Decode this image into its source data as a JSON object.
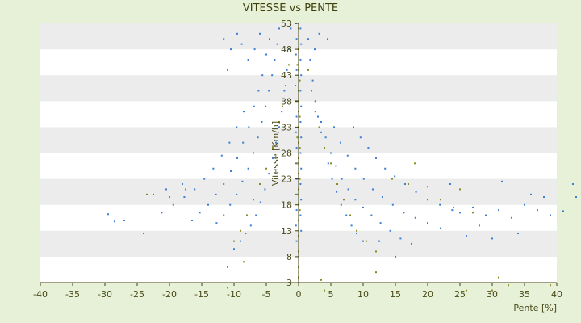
{
  "chart_data": {
    "type": "scatter",
    "title": "VITESSE vs PENTE",
    "xlabel": "Pente [%]",
    "ylabel": "Vitesse [Km/h]",
    "xlim": [
      -40,
      40
    ],
    "ylim": [
      3,
      53
    ],
    "x_ticks": [
      -40,
      -35,
      -30,
      -25,
      -20,
      -15,
      -10,
      -5,
      0,
      5,
      10,
      15,
      20,
      25,
      30,
      35,
      40
    ],
    "y_ticks": [
      3,
      8,
      13,
      18,
      23,
      28,
      33,
      38,
      43,
      48,
      53
    ],
    "grid": "horizontal bands",
    "legend": "none",
    "colors": {
      "background": "#e6f1d7",
      "plot_band_light": "#ffffff",
      "plot_band_dark": "#ececec",
      "series_blue": "#3a7fd5",
      "series_olive": "#8a8a1e",
      "text": "#4a4a1a"
    },
    "series": [
      {
        "color_key": "series_blue",
        "points": [
          [
            -0.4,
            53
          ],
          [
            -0.3,
            50
          ],
          [
            -0.4,
            47
          ],
          [
            -0.3,
            44
          ],
          [
            -0.5,
            41
          ],
          [
            -0.4,
            38
          ],
          [
            -0.3,
            35
          ],
          [
            -0.4,
            32
          ],
          [
            -0.3,
            29
          ],
          [
            -0.4,
            26
          ],
          [
            -0.3,
            23
          ],
          [
            -0.4,
            20
          ],
          [
            -0.3,
            17
          ],
          [
            -0.4,
            14
          ],
          [
            -0.3,
            11
          ],
          [
            0.3,
            52
          ],
          [
            0.4,
            49
          ],
          [
            0.3,
            46
          ],
          [
            0.4,
            43
          ],
          [
            0.3,
            40
          ],
          [
            0.4,
            37
          ],
          [
            0.3,
            34
          ],
          [
            0.4,
            31
          ],
          [
            0.3,
            28
          ],
          [
            0.4,
            25
          ],
          [
            0.3,
            22
          ],
          [
            0.4,
            19
          ],
          [
            0.3,
            16
          ],
          [
            0.4,
            13
          ],
          [
            -1.2,
            52
          ],
          [
            -1.5,
            48
          ],
          [
            -1.8,
            44
          ],
          [
            -2.2,
            40
          ],
          [
            -2.6,
            36
          ],
          [
            -3.0,
            33
          ],
          [
            -3.5,
            30
          ],
          [
            -4.0,
            27
          ],
          [
            -4.6,
            24
          ],
          [
            -5.2,
            21
          ],
          [
            -5.9,
            18.5
          ],
          [
            -6.6,
            16
          ],
          [
            -7.4,
            14
          ],
          [
            -8.2,
            12.5
          ],
          [
            -9.0,
            11
          ],
          [
            -10.0,
            9.5
          ],
          [
            -3.0,
            52
          ],
          [
            -3.3,
            49
          ],
          [
            -3.7,
            46
          ],
          [
            -4.1,
            43
          ],
          [
            -4.6,
            40
          ],
          [
            -5.1,
            37
          ],
          [
            -5.7,
            34
          ],
          [
            -6.3,
            31
          ],
          [
            -7.0,
            28
          ],
          [
            -7.8,
            25
          ],
          [
            -8.7,
            22.5
          ],
          [
            -9.6,
            20
          ],
          [
            -10.6,
            18
          ],
          [
            -11.6,
            16
          ],
          [
            -12.7,
            14.5
          ],
          [
            -4.5,
            50
          ],
          [
            -5.0,
            47
          ],
          [
            -5.6,
            43
          ],
          [
            -6.2,
            40
          ],
          [
            -6.9,
            37
          ],
          [
            -7.7,
            33
          ],
          [
            -8.6,
            30
          ],
          [
            -9.5,
            27
          ],
          [
            -10.5,
            24.5
          ],
          [
            -11.6,
            22
          ],
          [
            -12.8,
            20
          ],
          [
            -14.0,
            18
          ],
          [
            -15.3,
            16.5
          ],
          [
            -16.5,
            15
          ],
          [
            -6.0,
            51
          ],
          [
            -6.8,
            48
          ],
          [
            -7.8,
            46
          ],
          [
            -8.8,
            49
          ],
          [
            -9.5,
            51
          ],
          [
            -10.5,
            48
          ],
          [
            -11.0,
            44
          ],
          [
            -11.6,
            50
          ],
          [
            -8.5,
            36
          ],
          [
            -9.6,
            33
          ],
          [
            -10.7,
            30
          ],
          [
            -11.9,
            27.5
          ],
          [
            -13.2,
            25
          ],
          [
            -14.6,
            23
          ],
          [
            -16.1,
            21
          ],
          [
            -17.7,
            19.5
          ],
          [
            -19.4,
            18
          ],
          [
            -21.2,
            16.5
          ],
          [
            -22.5,
            20
          ],
          [
            -24.0,
            12.5
          ],
          [
            -27.0,
            15
          ],
          [
            -28.5,
            14.8
          ],
          [
            -29.5,
            16.2
          ],
          [
            -18.0,
            22
          ],
          [
            -20.5,
            21
          ],
          [
            1.5,
            50
          ],
          [
            1.8,
            46
          ],
          [
            2.2,
            42
          ],
          [
            2.6,
            38
          ],
          [
            3.0,
            35
          ],
          [
            3.5,
            32
          ],
          [
            4.0,
            29
          ],
          [
            4.6,
            26
          ],
          [
            5.2,
            23
          ],
          [
            5.9,
            20.5
          ],
          [
            6.6,
            18
          ],
          [
            7.4,
            16
          ],
          [
            8.2,
            14
          ],
          [
            9.0,
            12.5
          ],
          [
            10.0,
            11
          ],
          [
            3.5,
            34
          ],
          [
            4.2,
            31
          ],
          [
            5.0,
            28
          ],
          [
            5.8,
            25.5
          ],
          [
            6.7,
            23
          ],
          [
            7.7,
            21
          ],
          [
            8.8,
            19
          ],
          [
            10.0,
            17.5
          ],
          [
            11.3,
            16
          ],
          [
            12.7,
            14.5
          ],
          [
            14.2,
            13
          ],
          [
            15.8,
            11.5
          ],
          [
            17.5,
            10.5
          ],
          [
            5.5,
            33
          ],
          [
            6.5,
            30
          ],
          [
            7.6,
            27.5
          ],
          [
            8.8,
            25
          ],
          [
            10.1,
            23
          ],
          [
            11.5,
            21
          ],
          [
            13.0,
            19.5
          ],
          [
            14.6,
            18
          ],
          [
            16.3,
            16.5
          ],
          [
            18.1,
            15.5
          ],
          [
            20.0,
            14.5
          ],
          [
            22.0,
            13.5
          ],
          [
            8.5,
            33
          ],
          [
            9.6,
            31
          ],
          [
            10.8,
            29
          ],
          [
            12.0,
            27
          ],
          [
            13.4,
            25
          ],
          [
            14.9,
            23.5
          ],
          [
            16.5,
            22
          ],
          [
            18.2,
            20.5
          ],
          [
            20.0,
            19
          ],
          [
            21.9,
            18
          ],
          [
            23.8,
            17
          ],
          [
            4.5,
            50
          ],
          [
            3.2,
            51
          ],
          [
            2.5,
            48
          ],
          [
            15.0,
            8
          ],
          [
            12.5,
            11
          ],
          [
            27.0,
            17.5
          ],
          [
            29.0,
            16
          ],
          [
            31.0,
            17
          ],
          [
            33.0,
            15.5
          ],
          [
            35.0,
            18
          ],
          [
            37.0,
            17
          ],
          [
            39.0,
            16
          ],
          [
            41.0,
            16.8
          ],
          [
            43.0,
            19.5
          ],
          [
            42.5,
            22
          ],
          [
            26.0,
            12
          ],
          [
            30.0,
            11.5
          ],
          [
            34.0,
            12.5
          ],
          [
            36.0,
            20
          ],
          [
            38.0,
            19.5
          ],
          [
            23.5,
            22
          ],
          [
            31.5,
            22.5
          ],
          [
            28.0,
            14
          ],
          [
            25.0,
            16.5
          ]
        ]
      },
      {
        "color_key": "series_olive",
        "points": [
          [
            0.0,
            52
          ],
          [
            0.0,
            48
          ],
          [
            0.0,
            44
          ],
          [
            0.0,
            40
          ],
          [
            0.0,
            36
          ],
          [
            0.0,
            33
          ],
          [
            0.0,
            30
          ],
          [
            0.0,
            27
          ],
          [
            0.0,
            24
          ],
          [
            0.0,
            21
          ],
          [
            0.0,
            18
          ],
          [
            0.0,
            15
          ],
          [
            0.0,
            12
          ],
          [
            0.0,
            9
          ],
          [
            0.0,
            6
          ],
          [
            0.0,
            4
          ],
          [
            -0.2,
            45
          ],
          [
            0.2,
            42
          ],
          [
            -0.2,
            38
          ],
          [
            0.2,
            35
          ],
          [
            -0.2,
            31
          ],
          [
            0.2,
            29
          ],
          [
            -0.2,
            26
          ],
          [
            0.2,
            23
          ],
          [
            -0.2,
            20
          ],
          [
            0.2,
            17
          ],
          [
            -1.5,
            45
          ],
          [
            -2.0,
            41
          ],
          [
            -2.5,
            37
          ],
          [
            -3.0,
            34
          ],
          [
            -4.0,
            29
          ],
          [
            -5.0,
            25
          ],
          [
            -6.0,
            22
          ],
          [
            -7.0,
            19
          ],
          [
            -8.0,
            16
          ],
          [
            -9.0,
            13
          ],
          [
            -10.0,
            11
          ],
          [
            1.5,
            44
          ],
          [
            2.0,
            40
          ],
          [
            2.6,
            36
          ],
          [
            3.2,
            33
          ],
          [
            4.0,
            29
          ],
          [
            5.0,
            26
          ],
          [
            6.0,
            22
          ],
          [
            7.0,
            19
          ],
          [
            8.0,
            16
          ],
          [
            9.0,
            13
          ],
          [
            10.5,
            11
          ],
          [
            12.0,
            9
          ],
          [
            -11.0,
            6
          ],
          [
            -11.0,
            2
          ],
          [
            -8.5,
            7
          ],
          [
            3.5,
            3.5
          ],
          [
            4.0,
            1.5
          ],
          [
            12.0,
            5
          ],
          [
            26.0,
            1.5
          ],
          [
            30.0,
            1.5
          ],
          [
            31.0,
            4
          ],
          [
            32.5,
            2.5
          ],
          [
            39.0,
            2.5
          ],
          [
            -17.5,
            21
          ],
          [
            -20.0,
            19.5
          ],
          [
            -23.5,
            20
          ],
          [
            14.5,
            23
          ],
          [
            17.0,
            22
          ],
          [
            18.0,
            26
          ],
          [
            20.0,
            21.5
          ],
          [
            22.0,
            19
          ],
          [
            24.0,
            17.5
          ],
          [
            25.0,
            21
          ],
          [
            27.0,
            16.5
          ]
        ]
      }
    ]
  }
}
